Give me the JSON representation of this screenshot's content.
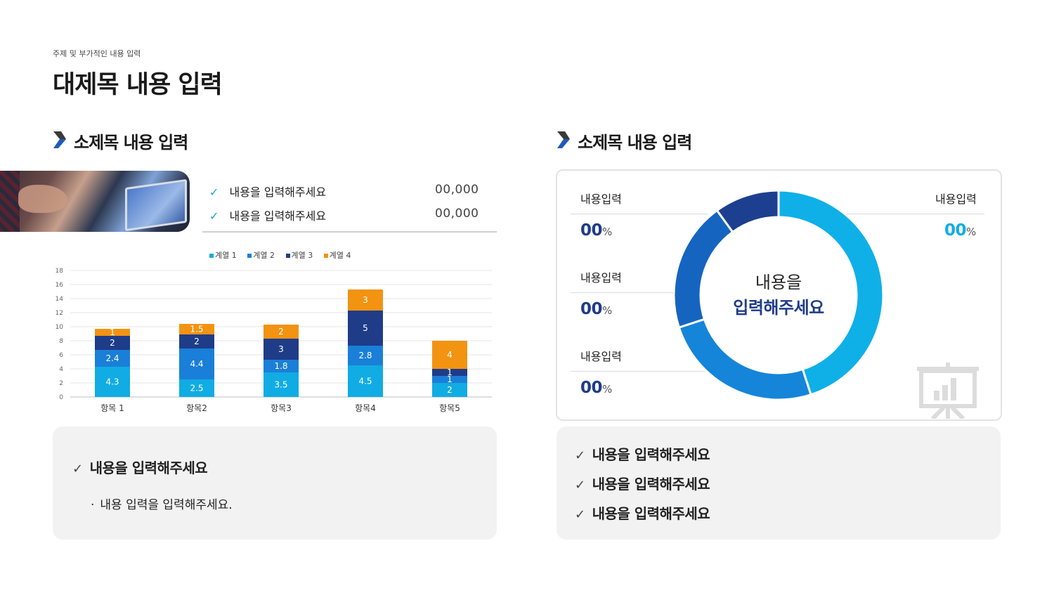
{
  "header": {
    "subtitle": "주제 및 부가적인 내용 입력",
    "title": "대제목 내용 입력"
  },
  "left_section": {
    "heading": "소제목 내용 입력",
    "photo_icon": "meeting-photo",
    "items": [
      {
        "label": "내용을 입력해주세요",
        "value": "00,000"
      },
      {
        "label": "내용을 입력해주세요",
        "value": "00,000"
      }
    ],
    "bottom_box": {
      "title": "내용을 입력해주세요",
      "bullet": "내용 입력을 입력해주세요."
    }
  },
  "right_section": {
    "heading": "소제목 내용 입력",
    "left_stats": [
      {
        "label": "내용입력",
        "value": "00",
        "unit": "%"
      },
      {
        "label": "내용입력",
        "value": "00",
        "unit": "%"
      },
      {
        "label": "내용입력",
        "value": "00",
        "unit": "%"
      }
    ],
    "right_stat": {
      "label": "내용입력",
      "value": "00",
      "unit": "%"
    },
    "donut_center": {
      "line1": "내용을",
      "line2": "입력해주세요"
    },
    "presentation_icon": "presentation-board-icon",
    "checklist": [
      "내용을 입력해주세요",
      "내용을 입력해주세요",
      "내용을 입력해주세요"
    ]
  },
  "colors": {
    "series1": "#11ace3",
    "series2": "#1a7fd8",
    "series3": "#1f3c88",
    "series4": "#f29312",
    "donut": [
      "#0fb0e8",
      "#1585d9",
      "#1565c0",
      "#1d3f8f"
    ]
  },
  "chart_data": [
    {
      "type": "bar",
      "stacked": true,
      "categories": [
        "항목 1",
        "항목2",
        "항목3",
        "항목4",
        "항목5"
      ],
      "series": [
        {
          "name": "계열 1",
          "values": [
            4.3,
            2.5,
            3.5,
            4.5,
            2
          ]
        },
        {
          "name": "계열 2",
          "values": [
            2.4,
            4.4,
            1.8,
            2.8,
            1
          ]
        },
        {
          "name": "계열 3",
          "values": [
            2,
            2,
            3,
            5,
            1
          ]
        },
        {
          "name": "계열 4",
          "values": [
            1,
            1.5,
            2,
            3,
            4
          ]
        }
      ],
      "ylim": [
        0,
        18
      ],
      "yticks": [
        0,
        2,
        4,
        6,
        8,
        10,
        12,
        14,
        16,
        18
      ],
      "grid": true,
      "legend": "top"
    },
    {
      "type": "pie",
      "donut": true,
      "values": [
        45,
        25,
        20,
        10
      ]
    }
  ]
}
